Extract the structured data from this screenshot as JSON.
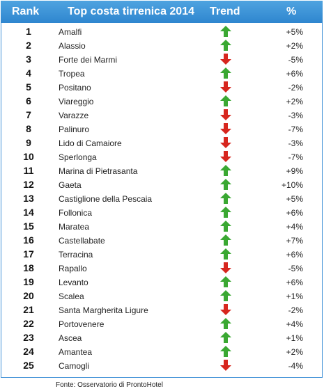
{
  "header": {
    "rank": "Rank",
    "name": "Top costa tirrenica 2014",
    "trend": "Trend",
    "pct": "%"
  },
  "colors": {
    "header": "#3a93d8",
    "up": "#3aa832",
    "down": "#d7261e"
  },
  "rows": [
    {
      "rank": "1",
      "name": "Amalfi",
      "trend": "up-arrow-icon",
      "pct": "+5%"
    },
    {
      "rank": "2",
      "name": "Alassio",
      "trend": "up-arrow-icon",
      "pct": "+2%"
    },
    {
      "rank": "3",
      "name": "Forte dei Marmi",
      "trend": "down-arrow-icon",
      "pct": "-5%"
    },
    {
      "rank": "4",
      "name": "Tropea",
      "trend": "up-arrow-icon",
      "pct": "+6%"
    },
    {
      "rank": "5",
      "name": "Positano",
      "trend": "down-arrow-icon",
      "pct": "-2%"
    },
    {
      "rank": "6",
      "name": "Viareggio",
      "trend": "up-arrow-icon",
      "pct": "+2%"
    },
    {
      "rank": "7",
      "name": "Varazze",
      "trend": "down-arrow-icon",
      "pct": "-3%"
    },
    {
      "rank": "8",
      "name": "Palinuro",
      "trend": "down-arrow-icon",
      "pct": "-7%"
    },
    {
      "rank": "9",
      "name": "Lido di Camaiore",
      "trend": "down-arrow-icon",
      "pct": "-3%"
    },
    {
      "rank": "10",
      "name": "Sperlonga",
      "trend": "down-arrow-icon",
      "pct": "-7%"
    },
    {
      "rank": "11",
      "name": "Marina di Pietrasanta",
      "trend": "up-arrow-icon",
      "pct": "+9%"
    },
    {
      "rank": "12",
      "name": "Gaeta",
      "trend": "up-arrow-icon",
      "pct": "+10%"
    },
    {
      "rank": "13",
      "name": "Castiglione della Pescaia",
      "trend": "up-arrow-icon",
      "pct": "+5%"
    },
    {
      "rank": "14",
      "name": "Follonica",
      "trend": "up-arrow-icon",
      "pct": "+6%"
    },
    {
      "rank": "15",
      "name": "Maratea",
      "trend": "up-arrow-icon",
      "pct": "+4%"
    },
    {
      "rank": "16",
      "name": "Castellabate",
      "trend": "up-arrow-icon",
      "pct": "+7%"
    },
    {
      "rank": "17",
      "name": "Terracina",
      "trend": "up-arrow-icon",
      "pct": "+6%"
    },
    {
      "rank": "18",
      "name": "Rapallo",
      "trend": "down-arrow-icon",
      "pct": "-5%"
    },
    {
      "rank": "19",
      "name": "Levanto",
      "trend": "up-arrow-icon",
      "pct": "+6%"
    },
    {
      "rank": "20",
      "name": "Scalea",
      "trend": "up-arrow-icon",
      "pct": "+1%"
    },
    {
      "rank": "21",
      "name": "Santa Margherita Ligure",
      "trend": "down-arrow-icon",
      "pct": "-2%"
    },
    {
      "rank": "22",
      "name": "Portovenere",
      "trend": "up-arrow-icon",
      "pct": "+4%"
    },
    {
      "rank": "23",
      "name": "Ascea",
      "trend": "up-arrow-icon",
      "pct": "+1%"
    },
    {
      "rank": "24",
      "name": "Amantea",
      "trend": "up-arrow-icon",
      "pct": "+2%"
    },
    {
      "rank": "25",
      "name": "Camogli",
      "trend": "down-arrow-icon",
      "pct": "-4%"
    }
  ],
  "source": "Fonte: Osservatorio di ProntoHotel"
}
